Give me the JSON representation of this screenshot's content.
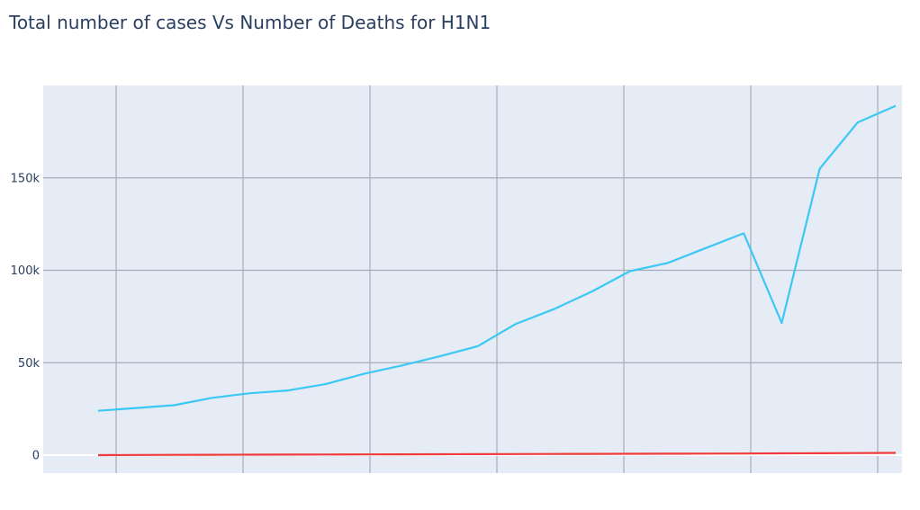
{
  "chart_data": {
    "type": "line",
    "title": "Total number of cases Vs Number of Deaths for H1N1",
    "xlabel": "",
    "ylabel": "",
    "ylim": [
      -10000,
      200000
    ],
    "grid": true,
    "yticks": [
      0,
      50000,
      100000,
      150000
    ],
    "ytick_labels": [
      "0",
      "50k",
      "100k",
      "150k"
    ],
    "x": [
      1,
      2,
      3,
      4,
      5,
      6,
      7,
      8,
      9,
      10,
      11,
      12,
      13,
      14,
      15,
      16,
      17,
      18,
      19,
      20,
      21,
      22
    ],
    "series": [
      {
        "color": "#3cc8f4",
        "values": [
          24000,
          25500,
          27000,
          31000,
          33500,
          35000,
          38500,
          44000,
          48500,
          53500,
          59000,
          71000,
          79000,
          88500,
          99500,
          104000,
          112000,
          120000,
          71500,
          155000,
          180000,
          189000
        ]
      },
      {
        "color": "#ef3b3b",
        "values": [
          0,
          100,
          150,
          200,
          250,
          300,
          350,
          400,
          450,
          500,
          550,
          600,
          650,
          700,
          750,
          800,
          850,
          900,
          950,
          1000,
          1100,
          1200
        ]
      }
    ]
  }
}
